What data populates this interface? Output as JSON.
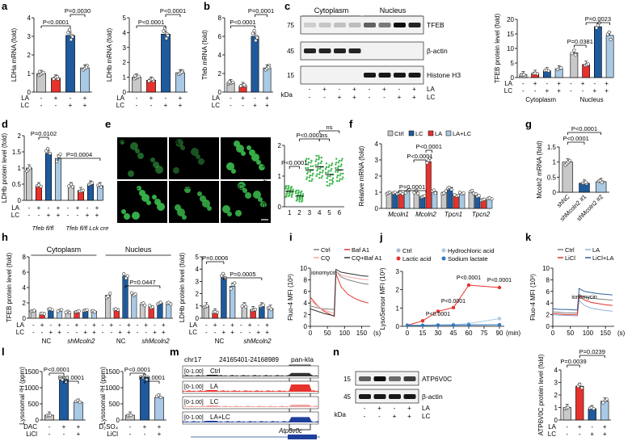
{
  "figure": {
    "panel_letters": [
      "a",
      "b",
      "c",
      "d",
      "e",
      "f",
      "g",
      "h",
      "i",
      "j",
      "k",
      "l",
      "m",
      "n"
    ],
    "colors": {
      "ctrl": "#c8c8c8",
      "la": "#e5322d",
      "lc": "#1f5a9c",
      "lalc": "#a9c9e4",
      "green": "#39b54a",
      "gray": "#7f7f7f",
      "blot_bg": "#f2f2f2",
      "micro_bg": "#000000"
    }
  },
  "chart_data": [
    {
      "id": "a1",
      "type": "bar",
      "panel": "a",
      "ylabel": "LDHa mRNA (fold)",
      "ylim": [
        0,
        4
      ],
      "yticks": [
        0,
        1,
        2,
        3,
        4
      ],
      "conditions": {
        "LA": [
          "-",
          "+",
          "-",
          "+"
        ],
        "LC": [
          "-",
          "-",
          "+",
          "+"
        ]
      },
      "values": [
        1.0,
        0.75,
        3.05,
        1.3
      ],
      "pvalues": [
        "P<0.0001",
        "P=0.0030"
      ]
    },
    {
      "id": "a2",
      "type": "bar",
      "panel": "a",
      "ylabel": "LDHb mRNA (fold)",
      "ylim": [
        0,
        5
      ],
      "yticks": [
        0,
        1,
        2,
        3,
        4,
        5
      ],
      "conditions": {
        "LA": [
          "-",
          "+",
          "-",
          "+"
        ],
        "LC": [
          "-",
          "-",
          "+",
          "+"
        ]
      },
      "values": [
        1.0,
        0.8,
        3.9,
        1.3
      ],
      "pvalues": [
        "P<0.0001",
        "P<0.0001"
      ]
    },
    {
      "id": "b",
      "type": "bar",
      "panel": "b",
      "ylabel": "Tfeb mRNA (fold)",
      "ylim": [
        0,
        8
      ],
      "yticks": [
        0,
        2,
        4,
        6,
        8
      ],
      "conditions": {
        "LA": [
          "-",
          "+",
          "-",
          "+"
        ],
        "LC": [
          "-",
          "-",
          "+",
          "+"
        ]
      },
      "values": [
        1.0,
        0.7,
        6.0,
        2.6
      ],
      "pvalues": [
        "P<0.0001",
        "P=0.0001"
      ]
    },
    {
      "id": "c",
      "type": "bar",
      "panel": "c",
      "ylabel": "TFEB protein level (fold)",
      "ylim": [
        0,
        20
      ],
      "yticks": [
        0,
        5,
        10,
        15,
        20
      ],
      "groups": [
        "Cytoplasm",
        "Nucleus"
      ],
      "conditions": {
        "LA": [
          "-",
          "+",
          "-",
          "+",
          "-",
          "+",
          "-",
          "+"
        ],
        "LC": [
          "-",
          "-",
          "+",
          "+",
          "-",
          "-",
          "+",
          "+"
        ]
      },
      "values": [
        1.0,
        1.4,
        2.3,
        3.0,
        8.5,
        4.5,
        17.5,
        14.5
      ],
      "pvalues": [
        "P=0.0381",
        "P=0.0023"
      ]
    },
    {
      "id": "d",
      "type": "bar",
      "panel": "d",
      "ylabel": "LDHb protein level (fold)",
      "ylim": [
        0,
        2.0
      ],
      "yticks": [
        0,
        0.5,
        1.0,
        1.5,
        2.0
      ],
      "groups": [
        "Tfeb fl/fl",
        "Tfeb fl/fl Lck cre"
      ],
      "conditions": {
        "LA": [
          "-",
          "+",
          "-",
          "+",
          "-",
          "+",
          "-",
          "+"
        ],
        "LC": [
          "-",
          "-",
          "+",
          "+",
          "-",
          "-",
          "+",
          "+"
        ]
      },
      "values": [
        1.0,
        0.45,
        1.45,
        1.3,
        0.45,
        0.3,
        0.5,
        0.45
      ],
      "pvalues": [
        "P=0.0102",
        "P=0.0004"
      ]
    },
    {
      "id": "e",
      "type": "scatter",
      "panel": "e",
      "ylabel": "Fluorescence intensity",
      "ylim": [
        0,
        2
      ],
      "yticks": [
        0,
        1,
        2
      ],
      "categories": [
        "1",
        "2",
        "3",
        "4",
        "5",
        "6"
      ],
      "means": [
        0.5,
        0.35,
        1.2,
        1.3,
        1.05,
        1.2
      ],
      "pvalues": [
        "P<0.0001",
        "P<0.0001",
        "ns",
        "ns"
      ]
    },
    {
      "id": "f",
      "type": "bar",
      "panel": "f",
      "ylabel": "Relative mRNA (fold)",
      "ylim": [
        0,
        4
      ],
      "yticks": [
        0,
        1,
        2,
        3,
        4
      ],
      "categories": [
        "Mcoln1",
        "Mcoln2",
        "Tpcn1",
        "Tpcn2"
      ],
      "legend": [
        "Ctrl",
        "LC",
        "LA",
        "LA+LC"
      ],
      "series": [
        {
          "name": "Ctrl",
          "values": [
            1.0,
            1.0,
            1.0,
            1.0
          ]
        },
        {
          "name": "LC",
          "values": [
            0.95,
            0.75,
            1.3,
            0.8
          ]
        },
        {
          "name": "LA",
          "values": [
            0.9,
            2.9,
            0.8,
            0.55
          ]
        },
        {
          "name": "LA+LC",
          "values": [
            1.05,
            1.05,
            0.9,
            0.6
          ]
        }
      ],
      "pvalues": [
        "P=0.0001",
        "P<0.0001",
        "P<0.0001"
      ]
    },
    {
      "id": "g",
      "type": "bar",
      "panel": "g",
      "ylabel": "Mcoln2 mRNA (fold)",
      "ylim": [
        0,
        1.5
      ],
      "yticks": [
        0,
        0.5,
        1.0,
        1.5
      ],
      "categories": [
        "shNC",
        "shMcoln2 #1",
        "shMcoln2 #2"
      ],
      "values": [
        1.0,
        0.3,
        0.35
      ],
      "pvalues": [
        "P<0.0001",
        "P<0.0001"
      ]
    },
    {
      "id": "h1",
      "type": "bar",
      "panel": "h",
      "ylabel": "TFEB protein level (fold)",
      "ylim": [
        0,
        8
      ],
      "yticks": [
        0,
        2,
        4,
        6,
        8
      ],
      "groups": [
        "NC",
        "shMcoln2",
        "NC",
        "shMcoln2"
      ],
      "group_headers": [
        "Cytoplasm",
        "Nucleus"
      ],
      "conditions": {
        "LA": [
          "-",
          "+",
          "-",
          "+",
          "-",
          "+",
          "-",
          "+",
          "-",
          "+",
          "-",
          "+",
          "-",
          "+",
          "-",
          "+"
        ],
        "LC": [
          "-",
          "-",
          "+",
          "+",
          "-",
          "-",
          "+",
          "+",
          "-",
          "-",
          "+",
          "+",
          "-",
          "-",
          "+",
          "+"
        ]
      },
      "values": [
        1.0,
        0.6,
        1.1,
        1.0,
        0.8,
        0.9,
        1.0,
        0.9,
        3.0,
        1.2,
        5.5,
        3.0,
        1.8,
        1.5,
        2.0,
        1.9
      ],
      "pvalues": [
        "P=0.0447"
      ]
    },
    {
      "id": "h2",
      "type": "bar",
      "panel": "h",
      "ylabel": "LDHb protein level (fold)",
      "ylim": [
        0,
        5
      ],
      "yticks": [
        0,
        1,
        2,
        3,
        4,
        5
      ],
      "groups": [
        "NC",
        "shMcoln2"
      ],
      "conditions": {
        "LA": [
          "-",
          "+",
          "-",
          "+",
          "-",
          "+",
          "-",
          "+"
        ],
        "LC": [
          "-",
          "-",
          "+",
          "+",
          "-",
          "-",
          "+",
          "+"
        ]
      },
      "values": [
        1.0,
        0.5,
        3.3,
        2.6,
        1.0,
        0.7,
        1.0,
        0.8
      ],
      "pvalues": [
        "P=0.0006",
        "P=0.0005"
      ]
    },
    {
      "id": "i",
      "type": "line",
      "panel": "i",
      "ylabel": "Fluo-4 MFI (10³)",
      "xlabel": "(s)",
      "ylim": [
        0,
        10
      ],
      "yticks": [
        0,
        2,
        4,
        6,
        8,
        10
      ],
      "xticks": [
        0,
        50,
        100,
        150
      ],
      "annotation": "ionomycin",
      "legend": [
        "Ctrl",
        "Baf A1",
        "CQ",
        "CQ+Baf A1"
      ],
      "series": [
        {
          "name": "Ctrl",
          "x": [
            0,
            20,
            40,
            70,
            75,
            90,
            110,
            130,
            150,
            170
          ],
          "y": [
            3.5,
            3.2,
            3.0,
            2.9,
            9.5,
            8.5,
            8.0,
            7.7,
            7.4,
            7.2
          ]
        },
        {
          "name": "Baf A1",
          "x": [
            0,
            20,
            40,
            70,
            75,
            90,
            110,
            130,
            150,
            170
          ],
          "y": [
            5.0,
            3.6,
            2.6,
            1.7,
            9.0,
            6.8,
            5.5,
            4.8,
            4.3,
            4.0
          ]
        },
        {
          "name": "CQ",
          "x": [
            0,
            20,
            40,
            70,
            75,
            90,
            110,
            130,
            150,
            170
          ],
          "y": [
            4.5,
            3.5,
            2.8,
            2.2,
            9.5,
            8.8,
            8.5,
            8.3,
            8.1,
            8.0
          ]
        },
        {
          "name": "CQ+Baf A1",
          "x": [
            0,
            20,
            40,
            70,
            75,
            90,
            110,
            130,
            150,
            170
          ],
          "y": [
            3.0,
            2.6,
            2.2,
            1.8,
            9.8,
            9.3,
            9.1,
            8.9,
            8.7,
            8.6
          ]
        }
      ]
    },
    {
      "id": "j",
      "type": "line",
      "panel": "j",
      "ylabel": "LysoSensor MFI (10³)",
      "xlabel": "(min)",
      "ylim": [
        0,
        3
      ],
      "yticks": [
        0,
        1,
        2,
        3
      ],
      "xticks": [
        0,
        15,
        30,
        45,
        60,
        75,
        90
      ],
      "legend": [
        "Ctrl",
        "Hydrochloric acid",
        "Lactic acid",
        "Sodium lactate"
      ],
      "series": [
        {
          "name": "Ctrl",
          "x": [
            0,
            15,
            30,
            45,
            60,
            90
          ],
          "y": [
            0.05,
            0.05,
            0.07,
            0.07,
            0.08,
            0.08
          ]
        },
        {
          "name": "Hydrochloric acid",
          "x": [
            0,
            15,
            30,
            45,
            60,
            90
          ],
          "y": [
            0.05,
            0.06,
            0.08,
            0.1,
            0.15,
            0.42
          ]
        },
        {
          "name": "Lactic acid",
          "x": [
            0,
            15,
            30,
            45,
            60,
            90
          ],
          "y": [
            0.05,
            0.3,
            0.82,
            1.02,
            2.25,
            2.12
          ]
        },
        {
          "name": "Sodium lactate",
          "x": [
            0,
            15,
            30,
            45,
            60,
            90
          ],
          "y": [
            0.05,
            0.05,
            0.06,
            0.06,
            0.07,
            0.08
          ]
        }
      ],
      "pvalues": [
        "P<0.0001",
        "P<0.0001",
        "P<0.0001",
        "P<0.0001"
      ]
    },
    {
      "id": "k",
      "type": "line",
      "panel": "k",
      "ylabel": "Fluo-4 MFI (10³)",
      "xlabel": "(s)",
      "ylim": [
        0,
        10
      ],
      "yticks": [
        0,
        2,
        4,
        6,
        8,
        10
      ],
      "xticks": [
        0,
        50,
        100,
        150
      ],
      "annotation": "ionomycin",
      "legend": [
        "Ctrl",
        "LA",
        "LiCl",
        "LiCl+LA"
      ],
      "series": [
        {
          "name": "Ctrl",
          "x": [
            0,
            20,
            40,
            70,
            75,
            90,
            110,
            130,
            150,
            170
          ],
          "y": [
            2.5,
            2.4,
            2.3,
            2.3,
            5.5,
            5.0,
            4.8,
            4.7,
            4.6,
            4.5
          ]
        },
        {
          "name": "LA",
          "x": [
            0,
            20,
            40,
            70,
            75,
            90,
            110,
            130,
            150,
            170
          ],
          "y": [
            2.0,
            1.9,
            1.9,
            1.8,
            4.5,
            3.6,
            3.1,
            2.9,
            2.7,
            2.6
          ]
        },
        {
          "name": "LiCl",
          "x": [
            0,
            20,
            40,
            70,
            75,
            90,
            110,
            130,
            150,
            170
          ],
          "y": [
            2.2,
            2.1,
            2.0,
            2.0,
            5.3,
            4.5,
            4.1,
            3.9,
            3.7,
            3.6
          ]
        },
        {
          "name": "LiCl+LA",
          "x": [
            0,
            20,
            40,
            70,
            75,
            90,
            110,
            130,
            150,
            170
          ],
          "y": [
            3.0,
            2.9,
            2.9,
            2.8,
            6.5,
            6.0,
            5.8,
            5.6,
            5.5,
            5.4
          ]
        }
      ]
    },
    {
      "id": "l1",
      "type": "bar",
      "panel": "l",
      "ylabel": "Lysosomal ²H (ppm)",
      "ylim": [
        0,
        1500
      ],
      "yticks": [
        0,
        500,
        1000,
        1500
      ],
      "conditions": {
        "DAC": [
          "-",
          "+",
          "+"
        ],
        "LiCl": [
          "-",
          "-",
          "+"
        ]
      },
      "values": [
        150,
        1250,
        550
      ],
      "pvalues": [
        "P<0.0001",
        "P<0.0001"
      ]
    },
    {
      "id": "l2",
      "type": "bar",
      "panel": "l",
      "ylabel": "Lysosomal ²H (ppm)",
      "ylim": [
        0,
        1500
      ],
      "yticks": [
        0,
        500,
        1000,
        1500
      ],
      "conditions": {
        "D₂SO₄": [
          "-",
          "+",
          "+"
        ],
        "LiCl": [
          "-",
          "-",
          "+"
        ]
      },
      "values": [
        150,
        1320,
        700
      ],
      "pvalues": [
        "P<0.0001",
        "P<0.0001"
      ]
    },
    {
      "id": "m",
      "type": "area",
      "panel": "m",
      "chromosome": "chr17",
      "locus": "24165401-24168989",
      "peak_label": "pan-kla",
      "gene": "Atp6v0c",
      "tracks": [
        {
          "name": "Ctrl",
          "range": "[0-1.00]"
        },
        {
          "name": "LA",
          "range": "[0-1.00]"
        },
        {
          "name": "LC",
          "range": "[0-1.00]"
        },
        {
          "name": "LA+LC",
          "range": "[0-1.00]"
        }
      ]
    },
    {
      "id": "n",
      "type": "bar",
      "panel": "n",
      "ylabel": "ATP6V0C protein level (fold)",
      "ylim": [
        0,
        4
      ],
      "yticks": [
        0,
        1,
        2,
        3,
        4
      ],
      "conditions": {
        "LA": [
          "-",
          "+",
          "-",
          "+"
        ],
        "LC": [
          "-",
          "-",
          "+",
          "+"
        ]
      },
      "values": [
        1.0,
        2.7,
        0.9,
        1.5
      ],
      "pvalues": [
        "P=0.0039",
        "P=0.0239"
      ]
    }
  ],
  "blots": {
    "c": {
      "headers": [
        "Cytoplasm",
        "Nucleus"
      ],
      "markers": [
        "75",
        "45",
        "15"
      ],
      "proteins": [
        "TFEB",
        "β-actin",
        "Histone H3"
      ],
      "kda": "kDa",
      "row_LA": [
        "-",
        "+",
        "-",
        "+",
        "-",
        "+",
        "-",
        "+"
      ],
      "row_LC": [
        "-",
        "-",
        "+",
        "+",
        "-",
        "-",
        "+",
        "+"
      ],
      "la_label": "LA",
      "lc_label": "LC"
    },
    "n": {
      "markers": [
        "15",
        "45"
      ],
      "proteins": [
        "ATP6V0C",
        "β-actin"
      ],
      "kda": "kDa",
      "row_LA": [
        "-",
        "+",
        "-",
        "+"
      ],
      "row_LC": [
        "-",
        "-",
        "+",
        "+"
      ],
      "la_label": "LA",
      "lc_label": "LC"
    }
  },
  "micrographs": [
    {
      "label": "Ctrl",
      "number": "1"
    },
    {
      "label": "LA",
      "number": "2"
    },
    {
      "label": "LC",
      "number": "3"
    },
    {
      "label": "LA+LC",
      "number": "4"
    },
    {
      "label": "LA+LC+CGP",
      "number": "5"
    },
    {
      "label": "LA+LC+Ryn",
      "number": "6"
    }
  ],
  "text": {
    "cyto": "Cytoplasm",
    "nuc": "Nucleus",
    "nc": "NC",
    "shm": "shMcoln2",
    "tfebfl": "Tfeb fl/fl",
    "tfeblck": "Tfeb fl/fl Lck cre"
  }
}
